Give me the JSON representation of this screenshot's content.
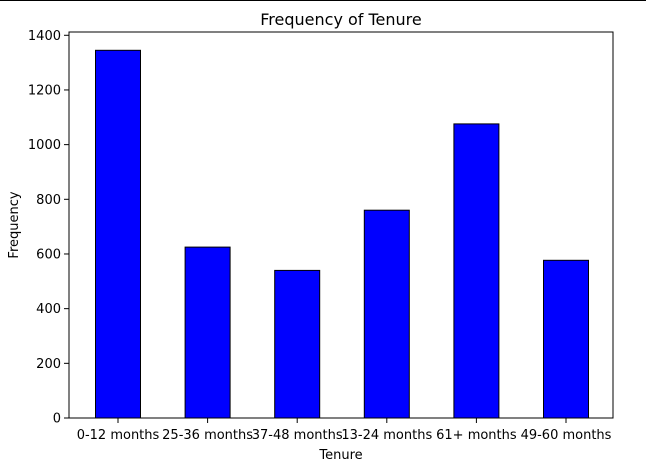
{
  "chart_data": {
    "type": "bar",
    "title": "Frequency of Tenure",
    "xlabel": "Tenure",
    "ylabel": "Frequency",
    "categories": [
      "0-12 months",
      "25-36 months",
      "37-48 months",
      "13-24 months",
      "61+ months",
      "49-60 months"
    ],
    "values": [
      1345,
      625,
      540,
      760,
      1076,
      577
    ],
    "ylim": [
      0,
      1412
    ],
    "yticks": [
      0,
      200,
      400,
      600,
      800,
      1000,
      1200,
      1400
    ],
    "bar_color": "#0000ff",
    "edge_color": "#000000",
    "grid": false,
    "legend": false
  }
}
